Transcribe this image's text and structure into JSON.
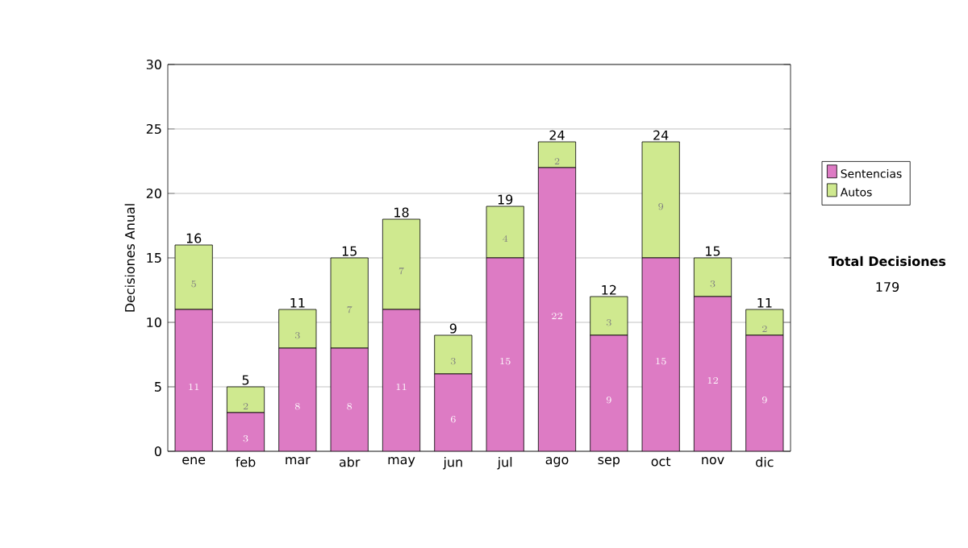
{
  "chart_data": {
    "type": "bar",
    "stacked": true,
    "ylabel": "Decisiones Anual",
    "categories": [
      "ene",
      "feb",
      "mar",
      "abr",
      "may",
      "jun",
      "jul",
      "ago",
      "sep",
      "oct",
      "nov",
      "dic"
    ],
    "series": [
      {
        "name": "Sentencias",
        "color": "#dd7bc4",
        "values": [
          11,
          3,
          8,
          8,
          11,
          6,
          15,
          22,
          9,
          15,
          12,
          9
        ]
      },
      {
        "name": "Autos",
        "color": "#cfe98f",
        "values": [
          5,
          2,
          3,
          7,
          7,
          3,
          4,
          2,
          3,
          9,
          3,
          2
        ]
      }
    ],
    "totals": [
      "16",
      "5",
      "11",
      "15",
      "18",
      "9",
      "19",
      "24",
      "12",
      "24",
      "15",
      "11"
    ],
    "ylim": [
      0,
      30
    ],
    "yticks": [
      0,
      5,
      10,
      15,
      20,
      25,
      30
    ],
    "grid": "y",
    "legend": "right",
    "data_labels": true,
    "annotations": [
      "Total Decisiones",
      "179"
    ]
  }
}
